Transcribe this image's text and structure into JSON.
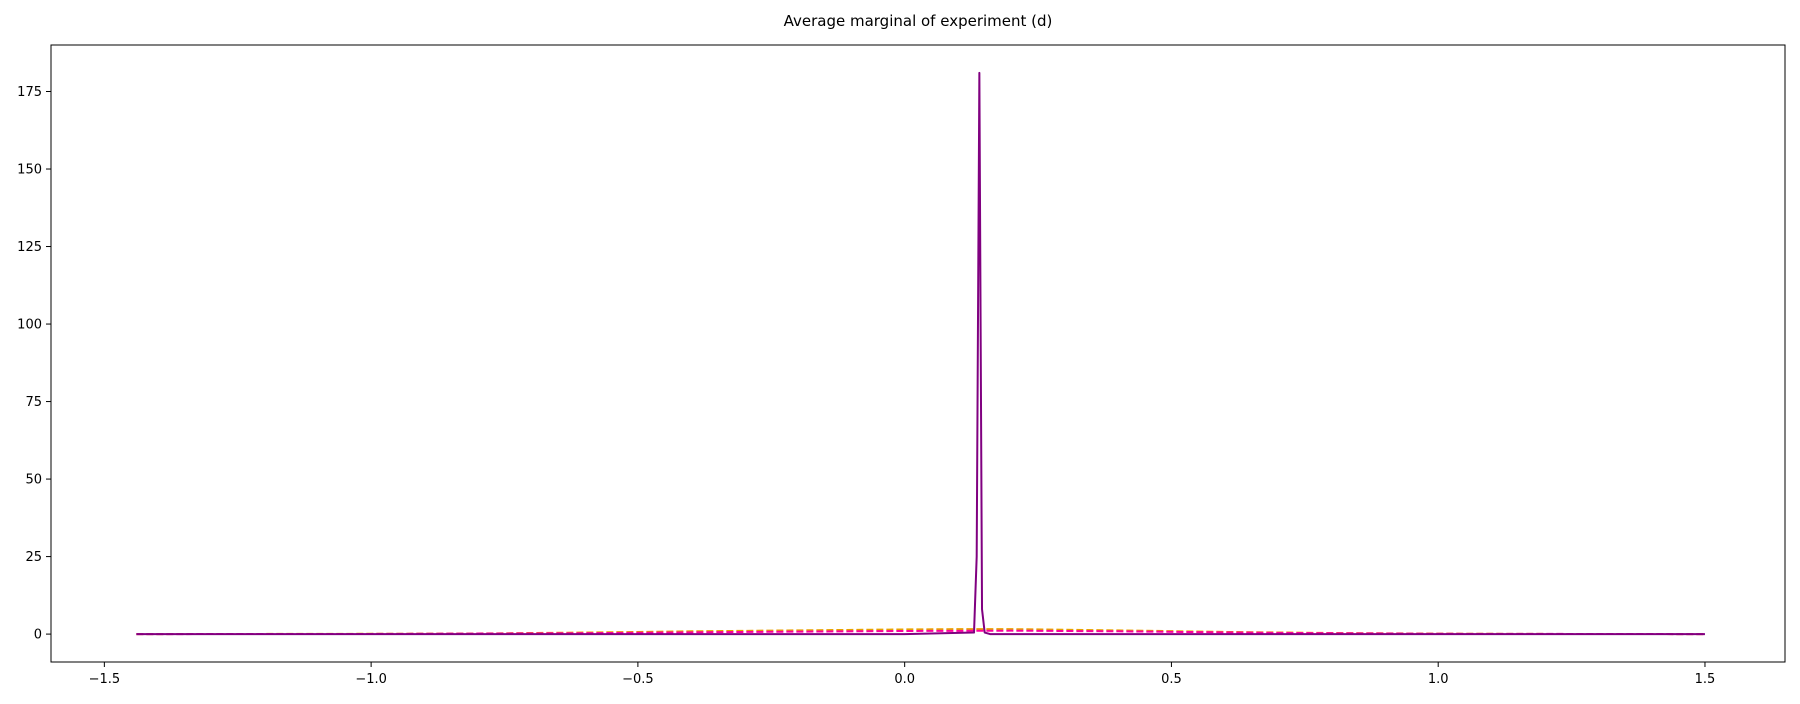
{
  "chart_data": {
    "type": "line",
    "title": "Average marginal of experiment (d)",
    "xlabel": "",
    "ylabel": "",
    "xlim": [
      -1.6,
      1.65
    ],
    "ylim": [
      -9,
      190
    ],
    "x_ticks": [
      -1.5,
      -1.0,
      -0.5,
      0.0,
      0.5,
      1.0,
      1.5
    ],
    "x_tick_labels": [
      "−1.5",
      "−1.0",
      "−0.5",
      "0.0",
      "0.5",
      "1.0",
      "1.5"
    ],
    "y_ticks": [
      0,
      25,
      50,
      75,
      100,
      125,
      150,
      175
    ],
    "y_tick_labels": [
      "0",
      "25",
      "50",
      "75",
      "100",
      "125",
      "150",
      "175"
    ],
    "grid": false,
    "series": [
      {
        "color": "#e8a200",
        "style": "dashed",
        "x": [
          -1.44,
          -1.2,
          -1.0,
          -0.8,
          -0.6,
          -0.4,
          -0.2,
          0.0,
          0.1,
          0.2,
          0.3,
          0.4,
          0.6,
          0.8,
          1.0,
          1.2,
          1.5
        ],
        "y": [
          0.0,
          0.05,
          0.1,
          0.2,
          0.5,
          0.9,
          1.2,
          1.5,
          1.6,
          1.6,
          1.4,
          1.2,
          0.7,
          0.35,
          0.15,
          0.05,
          0.0
        ]
      },
      {
        "color": "#ff00a0",
        "style": "dashed",
        "x": [
          -1.44,
          -1.0,
          -0.6,
          -0.3,
          0.0,
          0.2,
          0.4,
          0.7,
          1.0,
          1.5
        ],
        "y": [
          0.0,
          0.05,
          0.3,
          0.7,
          1.0,
          1.1,
          0.9,
          0.4,
          0.1,
          0.0
        ]
      },
      {
        "color": "#800080",
        "style": "solid",
        "x": [
          -1.44,
          0.0,
          0.13,
          0.135,
          0.14,
          0.145,
          0.15,
          0.16,
          1.0,
          1.5
        ],
        "y": [
          0.0,
          0.0,
          0.5,
          25,
          181,
          8,
          0.5,
          0.0,
          0.0,
          0.0
        ]
      }
    ]
  }
}
